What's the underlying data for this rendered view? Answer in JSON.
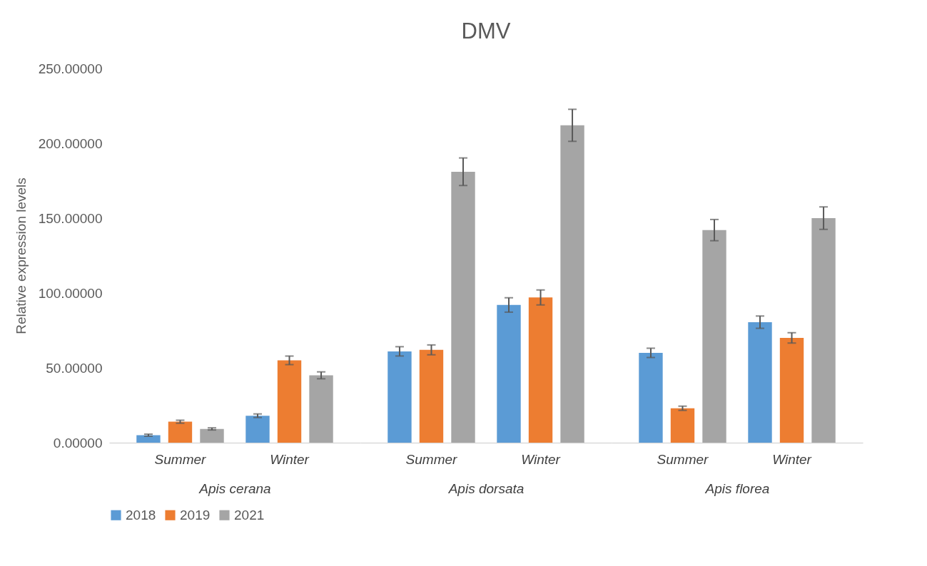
{
  "chart_data": [
    {
      "type": "bar",
      "ylabel": "Relative expression levels",
      "xlabel": "Apis cerana",
      "categories": [
        "Summer",
        "Winter"
      ],
      "ylim": [
        0,
        250
      ],
      "yticks": [
        {
          "value": 0,
          "label": "0.00000"
        },
        {
          "value": 50,
          "label": "50.00000"
        },
        {
          "value": 100,
          "label": "100.00000"
        },
        {
          "value": 150,
          "label": "150.00000"
        },
        {
          "value": 200,
          "label": "200.00000"
        },
        {
          "value": 250,
          "label": "250.00000"
        }
      ],
      "grid": false,
      "legend": "bottom",
      "series": [
        {
          "name": "2018",
          "color": "#5b9bd5",
          "values": [
            5,
            18
          ],
          "errors": [
            0.7,
            1.2
          ]
        },
        {
          "name": "2019",
          "color": "#ed7d31",
          "values": [
            14,
            55
          ],
          "errors": [
            1,
            2.9
          ]
        },
        {
          "name": "2021",
          "color": "#a5a5a5",
          "values": [
            9.2,
            45
          ],
          "errors": [
            0.7,
            2.3
          ]
        }
      ]
    },
    {
      "type": "bar",
      "title": "DMV",
      "xlabel": "Apis dorsata",
      "categories": [
        "Summer",
        "Winter"
      ],
      "ylim": [
        0,
        250
      ],
      "tick_labels": "x",
      "grid": false,
      "legend": "bottom",
      "series": [
        {
          "name": "2018",
          "color": "#5b9bd5",
          "values": [
            61,
            92
          ],
          "errors": [
            3.1,
            4.8
          ]
        },
        {
          "name": "2019",
          "color": "#ed7d31",
          "values": [
            62,
            97
          ],
          "errors": [
            3.3,
            5
          ]
        },
        {
          "name": "2021",
          "color": "#a5a5a5",
          "values": [
            181,
            212
          ],
          "errors": [
            9.2,
            10.7
          ]
        }
      ]
    },
    {
      "type": "bar",
      "xlabel": "Apis florea",
      "categories": [
        "Summer",
        "Winter"
      ],
      "ylim": [
        0,
        250
      ],
      "tick_labels": "x",
      "grid": false,
      "legend": "bottom",
      "series": [
        {
          "name": "2018",
          "color": "#5b9bd5",
          "values": [
            60,
            80.5
          ],
          "errors": [
            3.1,
            4.1
          ]
        },
        {
          "name": "2019",
          "color": "#ed7d31",
          "values": [
            23,
            70
          ],
          "errors": [
            1.4,
            3.5
          ]
        },
        {
          "name": "2021",
          "color": "#a5a5a5",
          "values": [
            142,
            150
          ],
          "errors": [
            7.1,
            7.5
          ]
        }
      ]
    }
  ]
}
